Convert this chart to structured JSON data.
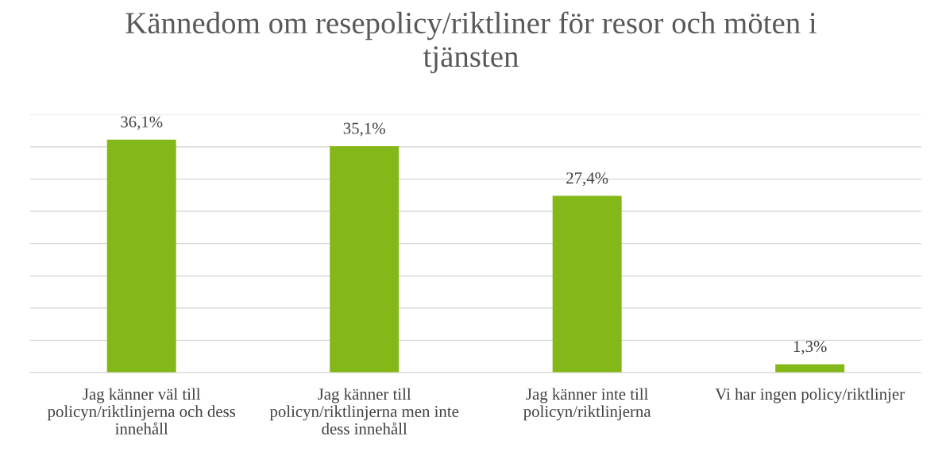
{
  "chart_data": {
    "type": "bar",
    "title": "Kännedom om resepolicy/riktliner för resor och möten i\ntjänsten",
    "categories": [
      "Jag känner väl till\npolicyn/riktlinjerna och dess\ninnehåll",
      "Jag känner till\npolicyn/riktlinjerna men inte\ndess innehåll",
      "Jag känner inte till\npolicyn/riktlinjerna",
      "Vi har ingen policy/riktlinjer"
    ],
    "values": [
      36.1,
      35.1,
      27.4,
      1.3
    ],
    "value_labels": [
      "36,1%",
      "35,1%",
      "27,4%",
      "1,3%"
    ],
    "color": "#84b819",
    "ylim": [
      0,
      40
    ],
    "yticks": [
      {
        "value": 0,
        "label": null
      },
      {
        "value": 5,
        "label": null
      },
      {
        "value": 10,
        "label": null
      },
      {
        "value": 15,
        "label": null
      },
      {
        "value": 20,
        "label": null
      },
      {
        "value": 25,
        "label": null
      },
      {
        "value": 30,
        "label": null
      },
      {
        "value": 35,
        "label": null
      },
      {
        "value": 40,
        "label": null
      }
    ],
    "grid": "y",
    "tick_labels": "x"
  }
}
